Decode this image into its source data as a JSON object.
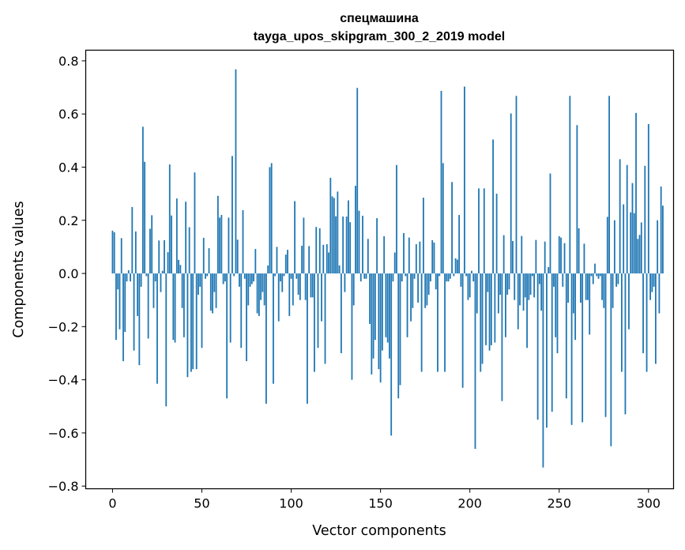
{
  "chart_data": {
    "type": "bar",
    "title": "спецмашина",
    "subtitle": "tayga_upos_skipgram_300_2_2019 model",
    "xlabel": "Vector components",
    "ylabel": "Components values",
    "xlim": [
      -15,
      314
    ],
    "ylim": [
      -0.81,
      0.84
    ],
    "xticks": [
      0,
      50,
      100,
      150,
      200,
      250,
      300
    ],
    "xtick_labels": [
      "0",
      "50",
      "100",
      "150",
      "200",
      "250",
      "300"
    ],
    "yticks": [
      -0.8,
      -0.6,
      -0.4,
      -0.2,
      0.0,
      0.2,
      0.4,
      0.6,
      0.8
    ],
    "ytick_labels": [
      "−0.8",
      "−0.6",
      "−0.4",
      "−0.2",
      "0.0",
      "0.2",
      "0.4",
      "0.6",
      "0.8"
    ],
    "bar_color": "#1f77b4",
    "grid": false,
    "x_start": 0,
    "values": [
      0.161,
      0.155,
      -0.25,
      -0.06,
      -0.21,
      0.133,
      -0.33,
      -0.22,
      -0.03,
      0.012,
      -0.03,
      0.25,
      -0.29,
      0.158,
      -0.16,
      -0.345,
      -0.05,
      0.552,
      0.42,
      -0.01,
      -0.245,
      0.168,
      0.219,
      -0.13,
      -0.03,
      -0.415,
      0.124,
      -0.07,
      0.01,
      0.125,
      -0.5,
      0.08,
      0.41,
      0.218,
      -0.25,
      -0.26,
      0.282,
      0.051,
      0.032,
      -0.13,
      -0.24,
      0.27,
      -0.39,
      0.174,
      -0.37,
      -0.36,
      0.38,
      -0.36,
      -0.08,
      -0.05,
      -0.28,
      0.134,
      -0.02,
      -0.01,
      0.095,
      -0.14,
      -0.15,
      -0.07,
      -0.13,
      0.292,
      0.21,
      0.22,
      -0.04,
      -0.03,
      -0.47,
      0.21,
      -0.26,
      0.442,
      -0.01,
      0.768,
      0.127,
      -0.05,
      -0.28,
      0.238,
      -0.02,
      -0.33,
      -0.12,
      -0.05,
      -0.04,
      -0.03,
      0.092,
      -0.15,
      -0.16,
      -0.1,
      -0.07,
      -0.12,
      -0.49,
      0.03,
      0.4,
      0.415,
      -0.415,
      -0.01,
      0.1,
      -0.18,
      -0.03,
      -0.07,
      -0.01,
      0.071,
      0.089,
      -0.16,
      -0.02,
      -0.12,
      0.272,
      -0.02,
      -0.08,
      -0.1,
      0.104,
      0.21,
      -0.1,
      -0.49,
      0.103,
      -0.09,
      -0.09,
      -0.37,
      0.175,
      -0.28,
      0.17,
      -0.18,
      0.108,
      -0.34,
      0.11,
      0.079,
      0.36,
      0.29,
      0.284,
      0.215,
      0.308,
      0.03,
      -0.3,
      0.214,
      -0.07,
      0.214,
      0.275,
      0.193,
      -0.4,
      -0.12,
      0.33,
      0.698,
      0.236,
      -0.03,
      0.217,
      -0.02,
      -0.02,
      0.13,
      -0.19,
      -0.38,
      -0.32,
      -0.25,
      0.208,
      -0.36,
      -0.41,
      -0.29,
      0.14,
      -0.24,
      -0.26,
      -0.32,
      -0.61,
      -0.03,
      0.079,
      0.408,
      -0.47,
      -0.42,
      -0.03,
      0.152,
      -0.01,
      -0.24,
      0.135,
      -0.18,
      -0.13,
      -0.02,
      0.11,
      -0.11,
      0.12,
      -0.37,
      0.285,
      -0.13,
      -0.12,
      -0.08,
      -0.03,
      0.125,
      0.116,
      -0.06,
      -0.37,
      -0.01,
      0.687,
      0.415,
      -0.37,
      -0.03,
      -0.03,
      -0.02,
      0.344,
      -0.01,
      0.057,
      0.052,
      0.22,
      -0.05,
      -0.43,
      0.703,
      -0.01,
      -0.1,
      -0.09,
      0.01,
      -0.03,
      -0.66,
      -0.15,
      0.32,
      -0.37,
      -0.34,
      0.32,
      -0.27,
      -0.07,
      -0.29,
      -0.27,
      0.504,
      -0.26,
      0.3,
      -0.15,
      -0.08,
      -0.48,
      0.144,
      -0.24,
      -0.08,
      -0.06,
      0.602,
      0.122,
      -0.1,
      0.668,
      -0.21,
      -0.12,
      0.141,
      -0.14,
      -0.09,
      -0.28,
      -0.1,
      -0.08,
      -0.01,
      -0.09,
      0.126,
      -0.55,
      -0.04,
      -0.14,
      -0.73,
      0.12,
      -0.58,
      0.024,
      0.376,
      -0.52,
      -0.05,
      -0.24,
      -0.3,
      0.14,
      0.135,
      -0.05,
      0.114,
      -0.47,
      -0.11,
      0.668,
      -0.57,
      -0.15,
      -0.25,
      0.558,
      0.17,
      -0.11,
      -0.56,
      0.112,
      -0.1,
      -0.1,
      -0.23,
      -0.01,
      -0.04,
      0.037,
      -0.01,
      -0.02,
      -0.01,
      -0.1,
      -0.13,
      -0.54,
      0.213,
      0.668,
      -0.65,
      -0.13,
      0.2,
      -0.05,
      -0.04,
      0.43,
      -0.37,
      0.26,
      -0.53,
      0.408,
      -0.21,
      0.23,
      0.34,
      0.227,
      0.604,
      0.13,
      0.145,
      0.192,
      -0.3,
      0.405,
      -0.37,
      0.562,
      -0.1,
      -0.07,
      -0.05,
      -0.34,
      0.2,
      -0.15,
      0.327,
      0.255
    ]
  }
}
